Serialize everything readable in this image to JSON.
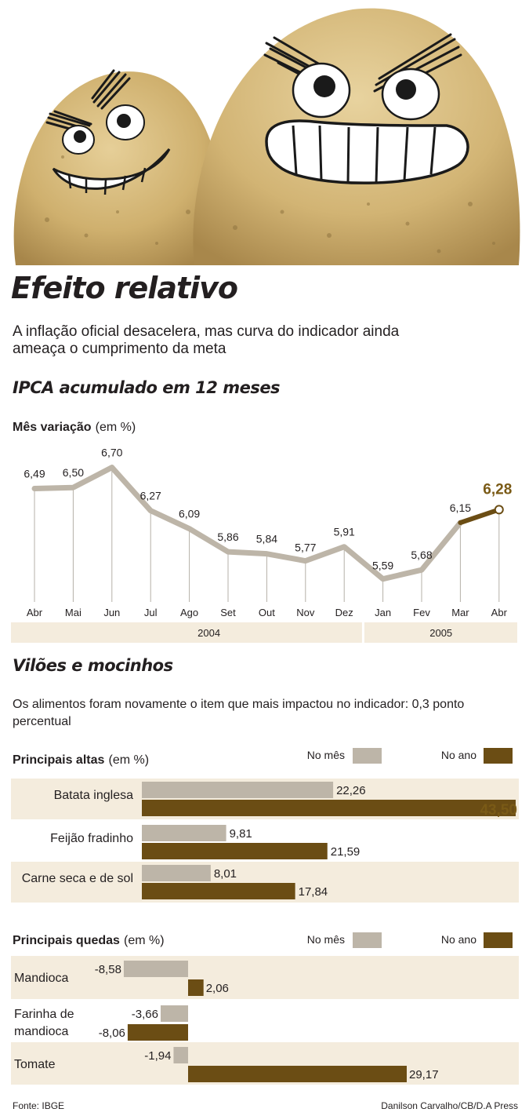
{
  "headline": "Efeito relativo",
  "subhead": "A inflação oficial desacelera, mas curva do indicador ainda ameaça o cumprimento da meta",
  "colors": {
    "light_series": "#bdb5a8",
    "dark_series": "#6b4d14",
    "band": "#f4ecdd",
    "highlight_text": "#7a5a16"
  },
  "chart_data": [
    {
      "type": "line",
      "title": "IPCA acumulado em 12 meses",
      "ylabel": "Mês variação",
      "yunit": "(em %)",
      "categories": [
        "Abr",
        "Mai",
        "Jun",
        "Jul",
        "Ago",
        "Set",
        "Out",
        "Nov",
        "Dez",
        "Jan",
        "Fev",
        "Mar",
        "Abr"
      ],
      "year_groups": [
        {
          "label": "2004",
          "from": 0,
          "to": 8
        },
        {
          "label": "2005",
          "from": 9,
          "to": 12
        }
      ],
      "series": [
        {
          "values": [
            6.49,
            6.5,
            6.7,
            6.27,
            6.09,
            5.86,
            5.84,
            5.77,
            5.91,
            5.59,
            5.68,
            6.15,
            6.28
          ]
        }
      ],
      "value_labels": [
        "6,49",
        "6,50",
        "6,70",
        "6,27",
        "6,09",
        "5,86",
        "5,84",
        "5,77",
        "5,91",
        "5,59",
        "5,68",
        "6,15",
        "6,28"
      ],
      "highlight_last_segment": true,
      "ylim": [
        5.4,
        6.9
      ],
      "grid": "vertical"
    },
    {
      "type": "bar",
      "orientation": "horizontal",
      "title": "Principais altas",
      "unit": "(em %)",
      "legend": [
        "No mês",
        "No ano"
      ],
      "categories": [
        "Batata inglesa",
        "Feijão fradinho",
        "Carne seca e de sol"
      ],
      "series": [
        {
          "name": "No mês",
          "values": [
            22.26,
            9.81,
            8.01
          ],
          "labels": [
            "22,26",
            "9,81",
            "8,01"
          ]
        },
        {
          "name": "No ano",
          "values": [
            43.5,
            21.59,
            17.84
          ],
          "labels": [
            "43,50",
            "21,59",
            "17,84"
          ]
        }
      ]
    },
    {
      "type": "bar",
      "orientation": "horizontal",
      "title": "Principais quedas",
      "unit": "(em %)",
      "legend": [
        "No mês",
        "No ano"
      ],
      "categories": [
        "Mandioca",
        "Farinha de mandioca",
        "Tomate"
      ],
      "category_lines": [
        [
          "Mandioca"
        ],
        [
          "Farinha de",
          "mandioca"
        ],
        [
          "Tomate"
        ]
      ],
      "series": [
        {
          "name": "No mês",
          "values": [
            -8.58,
            -3.66,
            -1.94
          ],
          "labels": [
            "-8,58",
            "-3,66",
            "-1,94"
          ]
        },
        {
          "name": "No ano",
          "values": [
            2.06,
            -8.06,
            29.17
          ],
          "labels": [
            "2,06",
            "-8,06",
            "29,17"
          ]
        }
      ]
    }
  ],
  "section2": {
    "title": "Vilões e mocinhos",
    "text": "Os alimentos foram novamente o item que mais impactou no indicador: 0,3 ponto percentual"
  },
  "footer": {
    "source": "Fonte: IBGE",
    "credit": "Danilson Carvalho/CB/D.A Press"
  }
}
